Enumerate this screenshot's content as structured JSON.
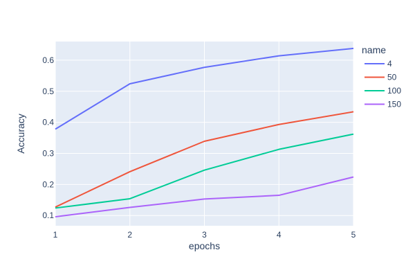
{
  "colors": {
    "plot_background": "#E5ECF6",
    "grid": "#ffffff",
    "text": "#2a3f5f"
  },
  "chart_data": {
    "type": "line",
    "xlabel": "epochs",
    "ylabel": "Accuracy",
    "x": [
      1,
      2,
      3,
      4,
      5
    ],
    "xlim": [
      1,
      5
    ],
    "ylim": [
      0.067,
      0.66
    ],
    "xticks": [
      1,
      2,
      3,
      4,
      5
    ],
    "yticks": [
      0.1,
      0.2,
      0.3,
      0.4,
      0.5,
      0.6
    ],
    "grid": true,
    "legend": {
      "title": "name",
      "placement": "right"
    },
    "series": [
      {
        "name": "4",
        "color": "#636EFA",
        "values": [
          0.378,
          0.524,
          0.577,
          0.614,
          0.638
        ]
      },
      {
        "name": "50",
        "color": "#EF553B",
        "values": [
          0.127,
          0.241,
          0.339,
          0.393,
          0.434
        ]
      },
      {
        "name": "100",
        "color": "#00CC96",
        "values": [
          0.124,
          0.154,
          0.246,
          0.313,
          0.362
        ]
      },
      {
        "name": "150",
        "color": "#AB63FA",
        "values": [
          0.096,
          0.126,
          0.153,
          0.165,
          0.224
        ]
      }
    ]
  }
}
